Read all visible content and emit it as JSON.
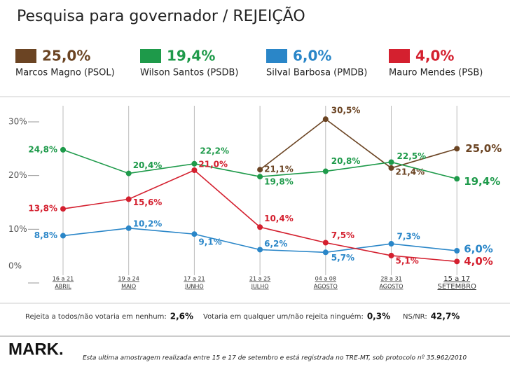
{
  "chart_data": {
    "type": "line",
    "title": "Pesquisa para governador / REJEIÇÃO",
    "categories": [
      [
        "16 a 21",
        "ABRIL"
      ],
      [
        "19 a 24",
        "MAIO"
      ],
      [
        "17 a 21",
        "JUNHO"
      ],
      [
        "21 a 25",
        "JULHO"
      ],
      [
        "04 a 08",
        "AGOSTO"
      ],
      [
        "28 a 31",
        "AGOSTO"
      ],
      [
        "15 a 17",
        "SETEMBRO"
      ]
    ],
    "series": [
      {
        "name": "Marcos Magno (PSOL)",
        "color": "#6b4423",
        "values": [
          null,
          null,
          null,
          21.1,
          30.5,
          21.4,
          25.0
        ],
        "value_labels": [
          null,
          null,
          null,
          "21,1%",
          "30,5%",
          "21,4%",
          "25,0%"
        ]
      },
      {
        "name": "Wilson Santos (PSDB)",
        "color": "#1e9a4a",
        "values": [
          24.8,
          20.4,
          22.2,
          19.8,
          20.8,
          22.5,
          19.4
        ],
        "value_labels": [
          "24,8%",
          "20,4%",
          "22,2%",
          "19,8%",
          "20,8%",
          "22,5%",
          "19,4%"
        ]
      },
      {
        "name": "Silval Barbosa (PMDB)",
        "color": "#2a86c8",
        "values": [
          8.8,
          10.2,
          9.1,
          6.2,
          5.7,
          7.3,
          6.0
        ],
        "value_labels": [
          "8,8%",
          "10,2%",
          "9,1%",
          "6,2%",
          "5,7%",
          "7,3%",
          "6,0%"
        ]
      },
      {
        "name": "Mauro Mendes (PSB)",
        "color": "#d4202f",
        "values": [
          13.8,
          15.6,
          21.0,
          10.4,
          7.5,
          5.1,
          4.0
        ],
        "value_labels": [
          "13,8%",
          "15,6%",
          "21,0%",
          "10,4%",
          "7,5%",
          "5,1%",
          "4,0%"
        ]
      }
    ],
    "ylim": [
      0,
      33
    ],
    "yticks": [
      {
        "value": 0,
        "label": "0%"
      },
      {
        "value": 10,
        "label": "10%"
      },
      {
        "value": 20,
        "label": "20%"
      },
      {
        "value": 30,
        "label": "30%"
      }
    ],
    "grid": true,
    "footer": {
      "items": [
        {
          "label": "Rejeita a todos/não votaria em nenhum:",
          "value": "2,6%"
        },
        {
          "label": "Votaria em qualquer um/não rejeita ninguém:",
          "value": "0,3%"
        },
        {
          "label": "NS/NR:",
          "value": "42,7%"
        }
      ],
      "logo": "MARK.",
      "note": "Esta ultima amostragem realizada entre 15 e 17 de setembro e está registrada no TRE-MT, sob protocolo  nº 35.962/2010"
    }
  }
}
